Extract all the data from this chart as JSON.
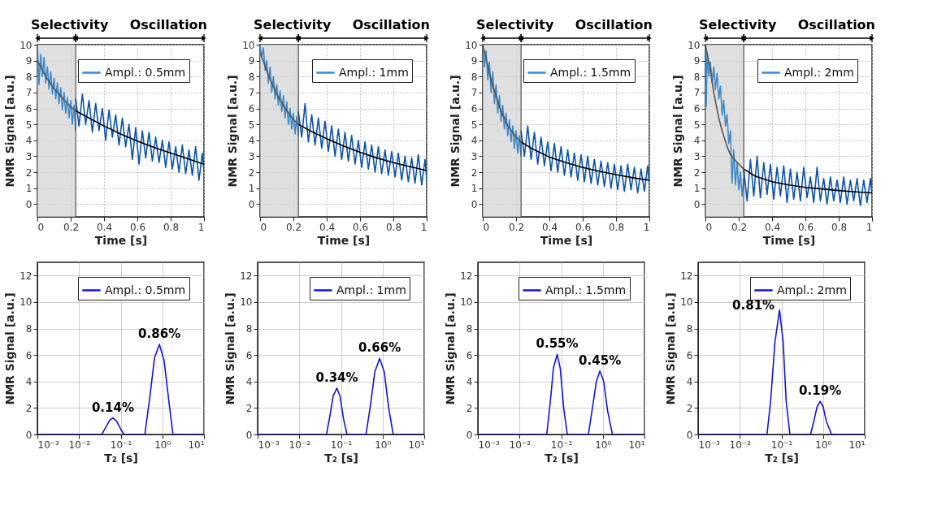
{
  "chart_data": [
    {
      "type": "line",
      "xlabel": "Time [s]",
      "ylabel": "NMR Signal [a.u.]",
      "xlim": [
        0,
        1
      ],
      "xticks": [
        0,
        0.2,
        0.4,
        0.6,
        0.8,
        1
      ],
      "ylim": [
        -0.8,
        10
      ],
      "yticks": [
        0,
        1,
        2,
        3,
        4,
        5,
        6,
        7,
        8,
        9,
        10
      ],
      "grid": true,
      "legend": "top right",
      "bands": [
        {
          "axis": "x",
          "from": 0,
          "to": 0.23,
          "label": "Selectivity",
          "color": "#d4d4d4"
        }
      ],
      "annotations": [
        "Oscillation"
      ],
      "ref_lines": [
        {
          "axis": "x",
          "value": 0.23,
          "color": "#333333"
        }
      ],
      "series": [
        {
          "name": "Ampl.: 0.5mm",
          "color": "#3d8ac9",
          "x": [
            0,
            0.01,
            0.02,
            0.03,
            0.04,
            0.05,
            0.06,
            0.07,
            0.08,
            0.09,
            0.1,
            0.11,
            0.12,
            0.13,
            0.14,
            0.15,
            0.16,
            0.17,
            0.18,
            0.19,
            0.2,
            0.21,
            0.22,
            0.23
          ],
          "values": [
            10,
            7.5,
            9.4,
            8.0,
            9.2,
            7.6,
            8.6,
            7.2,
            8.3,
            6.9,
            7.9,
            6.6,
            7.6,
            6.3,
            7.3,
            5.9,
            7.0,
            5.7,
            6.7,
            5.4,
            6.5,
            5.0,
            6.2,
            4.6
          ]
        },
        {
          "color": "#0a53aa",
          "x": [
            0.23,
            0.25,
            0.27,
            0.29,
            0.31,
            0.33,
            0.35,
            0.37,
            0.39,
            0.41,
            0.43,
            0.45,
            0.47,
            0.49,
            0.51,
            0.53,
            0.55,
            0.57,
            0.59,
            0.61,
            0.63,
            0.65,
            0.67,
            0.69,
            0.71,
            0.73,
            0.75,
            0.77,
            0.79,
            0.81,
            0.83,
            0.85,
            0.87,
            0.89,
            0.91,
            0.93,
            0.95,
            0.97,
            0.99,
            1.0
          ],
          "values": [
            6.6,
            4.9,
            6.9,
            5.0,
            6.5,
            4.5,
            6.3,
            4.6,
            6.0,
            4.0,
            5.9,
            4.2,
            5.6,
            3.7,
            5.4,
            3.6,
            5.0,
            2.8,
            4.8,
            2.5,
            4.6,
            2.9,
            4.5,
            2.7,
            4.2,
            2.6,
            4.0,
            2.3,
            3.9,
            2.2,
            3.6,
            2.0,
            3.7,
            1.9,
            3.4,
            1.8,
            3.6,
            1.5,
            3.2,
            2.0
          ]
        },
        {
          "color": "#555555",
          "x": [
            0,
            0.05,
            0.1,
            0.15,
            0.2,
            0.23
          ],
          "values": [
            9.0,
            8.0,
            7.25,
            6.65,
            6.1,
            5.85
          ]
        },
        {
          "color": "#000000",
          "x": [
            0.23,
            0.3,
            0.4,
            0.5,
            0.6,
            0.7,
            0.8,
            0.9,
            1.0
          ],
          "values": [
            5.85,
            5.45,
            4.9,
            4.4,
            3.95,
            3.55,
            3.2,
            2.85,
            2.5
          ]
        }
      ]
    },
    {
      "type": "line",
      "xlabel": "Time [s]",
      "ylabel": "NMR Signal [a.u.]",
      "xlim": [
        0,
        1
      ],
      "xticks": [
        0,
        0.2,
        0.4,
        0.6,
        0.8,
        1
      ],
      "ylim": [
        -0.8,
        10
      ],
      "yticks": [
        0,
        1,
        2,
        3,
        4,
        5,
        6,
        7,
        8,
        9,
        10
      ],
      "grid": true,
      "legend": "top right",
      "bands": [
        {
          "axis": "x",
          "from": 0,
          "to": 0.23,
          "label": "Selectivity",
          "color": "#d4d4d4"
        }
      ],
      "annotations": [
        "Oscillation"
      ],
      "ref_lines": [
        {
          "axis": "x",
          "value": 0.23,
          "color": "#333333"
        }
      ],
      "series": [
        {
          "name": "Ampl.: 1mm",
          "color": "#3d8ac9",
          "x": [
            0,
            0.01,
            0.02,
            0.03,
            0.04,
            0.05,
            0.06,
            0.07,
            0.08,
            0.09,
            0.1,
            0.11,
            0.12,
            0.13,
            0.14,
            0.15,
            0.16,
            0.17,
            0.18,
            0.19,
            0.2,
            0.21,
            0.22,
            0.23
          ],
          "values": [
            10,
            9.2,
            9.8,
            8.4,
            9.0,
            7.6,
            8.6,
            7.0,
            8.0,
            6.6,
            7.5,
            6.2,
            7.1,
            5.8,
            6.8,
            5.4,
            6.4,
            5.0,
            6.0,
            4.7,
            5.7,
            4.4,
            5.5,
            4.3
          ]
        },
        {
          "color": "#0a53aa",
          "x": [
            0.23,
            0.25,
            0.27,
            0.29,
            0.31,
            0.33,
            0.35,
            0.37,
            0.39,
            0.41,
            0.43,
            0.45,
            0.47,
            0.49,
            0.51,
            0.53,
            0.55,
            0.57,
            0.59,
            0.61,
            0.63,
            0.65,
            0.67,
            0.69,
            0.71,
            0.73,
            0.75,
            0.77,
            0.79,
            0.81,
            0.83,
            0.85,
            0.87,
            0.89,
            0.91,
            0.93,
            0.95,
            0.97,
            0.99,
            1.0
          ],
          "values": [
            5.8,
            4.2,
            6.3,
            3.9,
            5.6,
            3.7,
            5.4,
            3.5,
            5.2,
            3.3,
            4.9,
            3.0,
            4.7,
            2.8,
            4.5,
            2.7,
            4.3,
            2.5,
            4.0,
            2.3,
            3.9,
            2.2,
            3.7,
            2.0,
            3.6,
            1.9,
            3.4,
            1.8,
            3.3,
            1.7,
            3.2,
            1.5,
            3.0,
            1.4,
            2.9,
            1.3,
            3.1,
            1.2,
            2.8,
            1.6
          ]
        },
        {
          "color": "#555555",
          "x": [
            0,
            0.05,
            0.1,
            0.15,
            0.2,
            0.23
          ],
          "values": [
            9.5,
            8.1,
            6.9,
            6.0,
            5.3,
            5.0
          ]
        },
        {
          "color": "#000000",
          "x": [
            0.23,
            0.3,
            0.4,
            0.5,
            0.6,
            0.7,
            0.8,
            0.9,
            1.0
          ],
          "values": [
            5.0,
            4.6,
            4.1,
            3.65,
            3.25,
            2.9,
            2.6,
            2.35,
            2.1
          ]
        }
      ]
    },
    {
      "type": "line",
      "xlabel": "Time [s]",
      "ylabel": "NMR Signal [a.u.]",
      "xlim": [
        0,
        1
      ],
      "xticks": [
        0,
        0.2,
        0.4,
        0.6,
        0.8,
        1
      ],
      "ylim": [
        -0.8,
        10
      ],
      "yticks": [
        0,
        1,
        2,
        3,
        4,
        5,
        6,
        7,
        8,
        9,
        10
      ],
      "grid": true,
      "legend": "top right",
      "bands": [
        {
          "axis": "x",
          "from": 0,
          "to": 0.23,
          "label": "Selectivity",
          "color": "#d4d4d4"
        }
      ],
      "annotations": [
        "Oscillation"
      ],
      "ref_lines": [
        {
          "axis": "x",
          "value": 0.23,
          "color": "#333333"
        }
      ],
      "series": [
        {
          "name": "Ampl.: 1.5mm",
          "color": "#3d8ac9",
          "x": [
            0,
            0.01,
            0.02,
            0.03,
            0.04,
            0.05,
            0.06,
            0.07,
            0.08,
            0.09,
            0.1,
            0.11,
            0.12,
            0.13,
            0.14,
            0.15,
            0.16,
            0.17,
            0.18,
            0.19,
            0.2,
            0.21,
            0.22,
            0.23
          ],
          "values": [
            10,
            8.6,
            9.6,
            7.8,
            8.9,
            7.0,
            8.3,
            6.3,
            7.5,
            5.7,
            6.8,
            5.2,
            6.2,
            4.7,
            5.7,
            4.3,
            5.3,
            3.9,
            4.9,
            3.5,
            4.6,
            3.2,
            4.3,
            3.0
          ]
        },
        {
          "color": "#0a53aa",
          "x": [
            0.23,
            0.25,
            0.27,
            0.29,
            0.31,
            0.33,
            0.35,
            0.37,
            0.39,
            0.41,
            0.43,
            0.45,
            0.47,
            0.49,
            0.51,
            0.53,
            0.55,
            0.57,
            0.59,
            0.61,
            0.63,
            0.65,
            0.67,
            0.69,
            0.71,
            0.73,
            0.75,
            0.77,
            0.79,
            0.81,
            0.83,
            0.85,
            0.87,
            0.89,
            0.91,
            0.93,
            0.95,
            0.97,
            0.99,
            1.0
          ],
          "values": [
            4.6,
            3.0,
            4.9,
            2.8,
            4.5,
            2.5,
            4.2,
            2.4,
            3.9,
            2.1,
            3.8,
            2.0,
            3.6,
            1.8,
            3.4,
            1.7,
            3.2,
            1.5,
            3.1,
            1.4,
            3.0,
            1.3,
            2.8,
            1.2,
            2.7,
            1.1,
            2.6,
            1.0,
            2.5,
            0.9,
            2.4,
            0.8,
            2.5,
            0.9,
            2.3,
            0.7,
            2.2,
            0.8,
            2.4,
            1.2
          ]
        },
        {
          "color": "#555555",
          "x": [
            0,
            0.05,
            0.1,
            0.15,
            0.2,
            0.23
          ],
          "values": [
            10,
            7.8,
            6.1,
            4.9,
            4.2,
            3.9
          ]
        },
        {
          "color": "#000000",
          "x": [
            0.23,
            0.3,
            0.4,
            0.5,
            0.6,
            0.7,
            0.8,
            0.9,
            1.0
          ],
          "values": [
            3.9,
            3.45,
            2.95,
            2.6,
            2.3,
            2.05,
            1.85,
            1.65,
            1.5
          ]
        }
      ]
    },
    {
      "type": "line",
      "xlabel": "Time [s]",
      "ylabel": "NMR Signal [a.u.]",
      "xlim": [
        0,
        1
      ],
      "xticks": [
        0,
        0.2,
        0.4,
        0.6,
        0.8,
        1
      ],
      "ylim": [
        -0.8,
        10
      ],
      "yticks": [
        0,
        1,
        2,
        3,
        4,
        5,
        6,
        7,
        8,
        9,
        10
      ],
      "grid": true,
      "legend": "top right",
      "bands": [
        {
          "axis": "x",
          "from": 0,
          "to": 0.23,
          "label": "Selectivity",
          "color": "#d4d4d4"
        }
      ],
      "annotations": [
        "Oscillation"
      ],
      "ref_lines": [
        {
          "axis": "x",
          "value": 0.23,
          "color": "#333333"
        }
      ],
      "series": [
        {
          "name": "Ampl.: 2mm",
          "color": "#3d8ac9",
          "x": [
            0,
            0.005,
            0.01,
            0.02,
            0.03,
            0.04,
            0.05,
            0.06,
            0.07,
            0.08,
            0.09,
            0.1,
            0.11,
            0.12,
            0.13,
            0.14,
            0.15,
            0.16,
            0.17,
            0.18,
            0.19,
            0.2,
            0.21,
            0.22,
            0.23
          ],
          "values": [
            10,
            6.1,
            9.5,
            8.0,
            8.9,
            7.6,
            8.6,
            7.2,
            8.2,
            6.6,
            7.4,
            5.6,
            6.5,
            4.9,
            5.6,
            3.8,
            4.6,
            1.3,
            3.4,
            1.2,
            2.6,
            0.9,
            2.0,
            0.5,
            1.6
          ]
        },
        {
          "color": "#0a53aa",
          "x": [
            0.23,
            0.25,
            0.27,
            0.29,
            0.31,
            0.33,
            0.35,
            0.37,
            0.39,
            0.41,
            0.43,
            0.45,
            0.47,
            0.49,
            0.51,
            0.53,
            0.55,
            0.57,
            0.59,
            0.61,
            0.63,
            0.65,
            0.67,
            0.69,
            0.71,
            0.73,
            0.75,
            0.77,
            0.79,
            0.81,
            0.83,
            0.85,
            0.87,
            0.89,
            0.91,
            0.93,
            0.95,
            0.97,
            0.99,
            1.0
          ],
          "values": [
            2.2,
            0.2,
            2.8,
            0.5,
            3.0,
            0.4,
            2.6,
            0.6,
            2.5,
            0.3,
            2.3,
            0.5,
            2.4,
            0.1,
            2.2,
            0.3,
            2.0,
            0.2,
            2.3,
            0.4,
            1.7,
            0.1,
            2.3,
            0.2,
            1.6,
            0.0,
            1.7,
            0.2,
            1.5,
            0.1,
            1.7,
            0.0,
            1.5,
            0.2,
            1.6,
            -0.1,
            1.5,
            0.1,
            1.6,
            0.6
          ]
        },
        {
          "color": "#555555",
          "x": [
            0,
            0.03,
            0.05,
            0.08,
            0.1,
            0.13,
            0.15,
            0.2,
            0.23
          ],
          "values": [
            10,
            8.4,
            7.0,
            5.4,
            4.6,
            3.6,
            3.1,
            2.5,
            2.2
          ]
        },
        {
          "color": "#000000",
          "x": [
            0.23,
            0.3,
            0.4,
            0.5,
            0.6,
            0.7,
            0.8,
            0.9,
            1.0
          ],
          "values": [
            2.2,
            1.75,
            1.4,
            1.2,
            1.05,
            0.95,
            0.85,
            0.77,
            0.7
          ]
        }
      ]
    },
    {
      "type": "line",
      "xlabel": "T₂ [s]",
      "ylabel": "NMR Signal [a.u.]",
      "log": "x",
      "xlim": [
        0.001,
        10
      ],
      "xticks": [
        {
          "value": 0.001,
          "label": "10⁻³"
        },
        {
          "value": 0.01,
          "label": "10⁻²"
        },
        {
          "value": 0.1,
          "label": "10⁻¹"
        },
        {
          "value": 1,
          "label": "10⁰"
        },
        {
          "value": 10,
          "label": "10¹"
        }
      ],
      "ylim": [
        0,
        13
      ],
      "yticks": [
        0,
        2,
        4,
        6,
        8,
        10,
        12
      ],
      "grid": true,
      "legend": "top right",
      "annotations": [
        {
          "text": "0.14%",
          "x": 0.065,
          "y": 1.25
        },
        {
          "text": "0.86%",
          "x": 0.85,
          "y": 6.8
        }
      ],
      "series": [
        {
          "name": "Ampl.: 0.5mm",
          "color": "#1414d2",
          "x": [
            0.001,
            0.035,
            0.045,
            0.055,
            0.065,
            0.08,
            0.1,
            0.12,
            0.38,
            0.5,
            0.65,
            0.85,
            1.1,
            1.4,
            1.8,
            10
          ],
          "values": [
            0,
            0,
            0.6,
            1.1,
            1.25,
            1.0,
            0.4,
            0,
            0,
            2.8,
            5.8,
            6.8,
            5.6,
            2.8,
            0,
            0
          ]
        }
      ]
    },
    {
      "type": "line",
      "xlabel": "T₂ [s]",
      "ylabel": "NMR Signal [a.u.]",
      "log": "x",
      "xlim": [
        0.001,
        10
      ],
      "xticks": [
        {
          "value": 0.001,
          "label": "10⁻³"
        },
        {
          "value": 0.01,
          "label": "10⁻²"
        },
        {
          "value": 0.1,
          "label": "10⁻¹"
        },
        {
          "value": 1,
          "label": "10⁰"
        },
        {
          "value": 10,
          "label": "10¹"
        }
      ],
      "ylim": [
        0,
        13
      ],
      "yticks": [
        0,
        2,
        4,
        6,
        8,
        10,
        12
      ],
      "grid": true,
      "legend": "top right",
      "annotations": [
        {
          "text": "0.34%",
          "x": 0.08,
          "y": 3.5
        },
        {
          "text": "0.66%",
          "x": 0.85,
          "y": 5.75
        }
      ],
      "series": [
        {
          "name": "Ampl.: 1mm",
          "color": "#1414d2",
          "x": [
            0.001,
            0.045,
            0.055,
            0.065,
            0.08,
            0.095,
            0.115,
            0.14,
            0.4,
            0.5,
            0.65,
            0.85,
            1.1,
            1.4,
            1.8,
            10
          ],
          "values": [
            0,
            0,
            1.5,
            2.9,
            3.5,
            2.9,
            1.2,
            0,
            0,
            2.0,
            4.7,
            5.75,
            4.7,
            2.0,
            0,
            0
          ]
        }
      ]
    },
    {
      "type": "line",
      "xlabel": "T₂ [s]",
      "ylabel": "NMR Signal [a.u.]",
      "log": "x",
      "xlim": [
        0.001,
        10
      ],
      "xticks": [
        {
          "value": 0.001,
          "label": "10⁻³"
        },
        {
          "value": 0.01,
          "label": "10⁻²"
        },
        {
          "value": 0.1,
          "label": "10⁻¹"
        },
        {
          "value": 1,
          "label": "10⁰"
        },
        {
          "value": 10,
          "label": "10¹"
        }
      ],
      "ylim": [
        0,
        13
      ],
      "yticks": [
        0,
        2,
        4,
        6,
        8,
        10,
        12
      ],
      "grid": true,
      "legend": "top right",
      "annotations": [
        {
          "text": "0.55%",
          "x": 0.08,
          "y": 6.05
        },
        {
          "text": "0.45%",
          "x": 0.85,
          "y": 4.8
        }
      ],
      "series": [
        {
          "name": "Ampl.: 1.5mm",
          "color": "#1414d2",
          "x": [
            0.001,
            0.045,
            0.055,
            0.065,
            0.08,
            0.095,
            0.115,
            0.14,
            0.45,
            0.55,
            0.7,
            0.85,
            1.05,
            1.3,
            1.7,
            10
          ],
          "values": [
            0,
            0,
            2.5,
            5.0,
            6.05,
            5.0,
            2.0,
            0,
            0,
            1.8,
            4.0,
            4.8,
            4.0,
            1.8,
            0,
            0
          ]
        }
      ]
    },
    {
      "type": "line",
      "xlabel": "T₂ [s]",
      "ylabel": "NMR Signal [a.u.]",
      "log": "x",
      "xlim": [
        0.001,
        10
      ],
      "xticks": [
        {
          "value": 0.001,
          "label": "10⁻³"
        },
        {
          "value": 0.01,
          "label": "10⁻²"
        },
        {
          "value": 0.1,
          "label": "10⁻¹"
        },
        {
          "value": 1,
          "label": "10⁰"
        },
        {
          "value": 10,
          "label": "10¹"
        }
      ],
      "ylim": [
        0,
        13
      ],
      "yticks": [
        0,
        2,
        4,
        6,
        8,
        10,
        12
      ],
      "grid": true,
      "legend": "top right",
      "annotations": [
        {
          "text": "0.81%",
          "x": 0.09,
          "y": 9.4
        },
        {
          "text": "0.19%",
          "x": 0.85,
          "y": 2.5
        }
      ],
      "series": [
        {
          "name": "Ampl.: 2mm",
          "color": "#1414d2",
          "x": [
            0.001,
            0.045,
            0.055,
            0.07,
            0.09,
            0.11,
            0.13,
            0.16,
            0.5,
            0.6,
            0.72,
            0.85,
            1.0,
            1.2,
            1.6,
            10
          ],
          "values": [
            0,
            0,
            2.5,
            7.0,
            9.4,
            7.0,
            2.5,
            0,
            0,
            1.0,
            2.1,
            2.5,
            2.1,
            1.0,
            0,
            0
          ]
        }
      ]
    }
  ]
}
